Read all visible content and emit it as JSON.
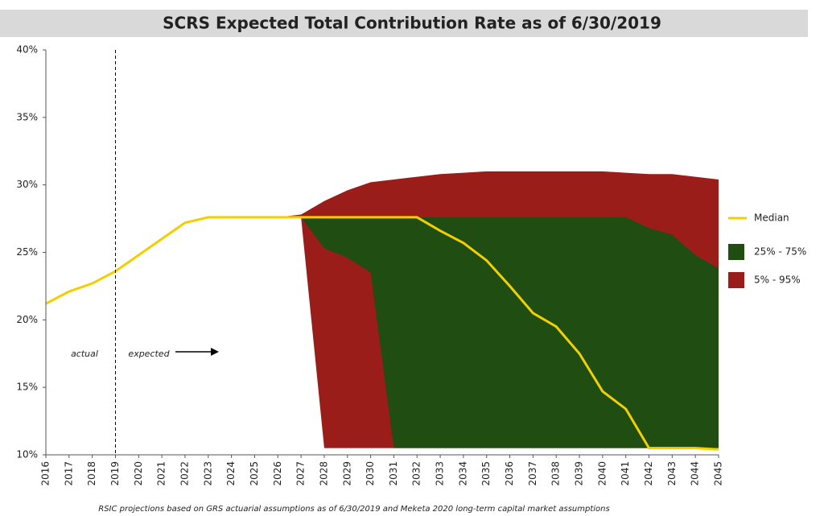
{
  "chart_data": {
    "type": "band",
    "title": "SCRS Expected Total Contribution Rate as of 6/30/2019",
    "footnote": "RSIC projections based on GRS actuarial assumptions as of 6/30/2019 and Meketa 2020 long-term capital market assumptions",
    "annotations": [
      "actual",
      "expected"
    ],
    "x": [
      2016,
      2017,
      2018,
      2019,
      2020,
      2021,
      2022,
      2023,
      2024,
      2025,
      2026,
      2027,
      2028,
      2029,
      2030,
      2031,
      2032,
      2033,
      2034,
      2035,
      2036,
      2037,
      2038,
      2039,
      2040,
      2041,
      2042,
      2043,
      2044,
      2045
    ],
    "xlim": [
      2016,
      2045
    ],
    "ylim": [
      10,
      40
    ],
    "yticks": [
      {
        "value": 10,
        "label": "10%"
      },
      {
        "value": 15,
        "label": "15%"
      },
      {
        "value": 20,
        "label": "20%"
      },
      {
        "value": 25,
        "label": "25%"
      },
      {
        "value": 30,
        "label": "30%"
      },
      {
        "value": 35,
        "label": "35%"
      },
      {
        "value": 40,
        "label": "40%"
      }
    ],
    "series": [
      {
        "name": "Median",
        "color": "#f2cf00",
        "values": [
          21.2,
          22.1,
          22.7,
          23.6,
          24.8,
          26.0,
          27.2,
          27.6,
          27.6,
          27.6,
          27.6,
          27.6,
          27.6,
          27.6,
          27.6,
          27.6,
          27.6,
          26.6,
          25.7,
          24.4,
          22.5,
          20.5,
          19.5,
          17.5,
          14.7,
          13.4,
          10.5,
          10.5,
          10.5,
          10.4
        ]
      },
      {
        "name": "25% - 75%",
        "color": "#1f4d12",
        "lower": [
          null,
          null,
          null,
          null,
          null,
          null,
          null,
          null,
          null,
          null,
          null,
          27.6,
          25.3,
          24.6,
          23.5,
          10.5,
          10.5,
          10.5,
          10.5,
          10.5,
          10.5,
          10.5,
          10.5,
          10.5,
          10.5,
          10.5,
          10.5,
          10.5,
          10.5,
          10.5
        ],
        "upper": [
          null,
          null,
          null,
          null,
          null,
          null,
          null,
          null,
          null,
          null,
          null,
          27.6,
          27.6,
          27.6,
          27.6,
          27.6,
          27.6,
          27.6,
          27.6,
          27.6,
          27.6,
          27.6,
          27.6,
          27.6,
          27.6,
          27.6,
          26.8,
          26.3,
          24.8,
          23.8
        ]
      },
      {
        "name": "5% - 95%",
        "color": "#9a1d1a",
        "lower": [
          null,
          null,
          null,
          null,
          null,
          null,
          null,
          null,
          null,
          null,
          27.6,
          27.6,
          10.5,
          10.5,
          10.5,
          10.5,
          10.5,
          10.5,
          10.5,
          10.5,
          10.5,
          10.5,
          10.5,
          10.5,
          10.5,
          10.5,
          10.5,
          10.5,
          10.5,
          10.5
        ],
        "upper": [
          null,
          null,
          null,
          null,
          null,
          null,
          null,
          null,
          null,
          null,
          27.6,
          27.8,
          28.8,
          29.6,
          30.2,
          30.4,
          30.6,
          30.8,
          30.9,
          31.0,
          31.0,
          31.0,
          31.0,
          31.0,
          31.0,
          30.9,
          30.8,
          30.8,
          30.6,
          30.4
        ]
      }
    ]
  }
}
